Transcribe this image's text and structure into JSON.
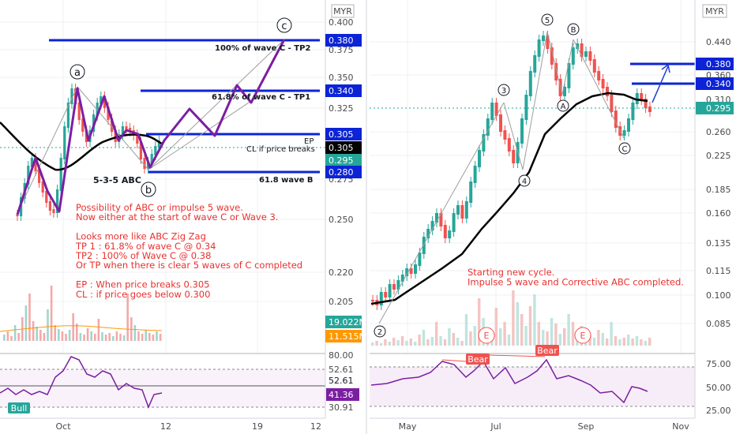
{
  "left_panel": {
    "currency": "MYR",
    "price_ticks": [
      "0.400",
      "0.375",
      "0.350",
      "0.325",
      "0.275",
      "0.250",
      "0.220",
      "0.205"
    ],
    "x_ticks": [
      "Oct",
      "12",
      "19",
      "12"
    ],
    "rsi_ticks": [
      "80.00",
      "52.61",
      "30.91"
    ],
    "rsi_tags": [
      {
        "text": "52.61",
        "color": "#ffffff",
        "fg": "#131722"
      },
      {
        "text": "41.36",
        "color": "#7b1fa2",
        "fg": "#ffffff"
      }
    ],
    "price_tags": [
      {
        "text": "0.380",
        "color": "#0c23d6",
        "fg": "#ffffff"
      },
      {
        "text": "0.340",
        "color": "#0c23d6",
        "fg": "#ffffff"
      },
      {
        "text": "0.305",
        "color": "#0c23d6",
        "fg": "#ffffff"
      },
      {
        "text": "0.305",
        "color": "#000000",
        "fg": "#ffffff"
      },
      {
        "text": "0.295",
        "color": "#26a69a",
        "fg": "#ffffff"
      },
      {
        "text": "0.280",
        "color": "#0c23d6",
        "fg": "#ffffff"
      },
      {
        "text": "19.022M",
        "color": "#26a69a",
        "fg": "#ffffff"
      },
      {
        "text": "11.515M",
        "color": "#ff9800",
        "fg": "#ffffff"
      }
    ],
    "level_labels": [
      "100% of wave C - TP2",
      "61.8% of wave C - TP1",
      "EP",
      "CL if price breaks",
      "61.8 wave B"
    ],
    "wave_labels": [
      "a",
      "b",
      "c"
    ],
    "pattern_label": "5-3-5 ABC",
    "bull_tag": "Bull",
    "notes": [
      "Possibility of ABC or impulse 5 wave.",
      "Now either at the start of wave C or Wave 3.",
      "",
      "Looks more like ABC Zig Zag",
      "TP 1 : 61.8% of wave C @ 0.34",
      "TP2 : 100% of Wave C @ 0.38",
      "Or TP when there is clear 5 waves of C completed",
      "",
      "EP : When price breaks 0.305",
      "CL : if price goes below 0.300"
    ]
  },
  "right_panel": {
    "currency": "MYR",
    "price_ticks": [
      "0.440",
      "0.360",
      "0.310",
      "0.260",
      "0.225",
      "0.185",
      "0.160",
      "0.135",
      "0.115",
      "0.100",
      "0.085"
    ],
    "x_ticks": [
      "May",
      "Jul",
      "Sep",
      "Nov"
    ],
    "rsi_ticks": [
      "75.00",
      "50.00",
      "25.00"
    ],
    "price_tags": [
      {
        "text": "0.380",
        "color": "#0c23d6",
        "fg": "#ffffff"
      },
      {
        "text": "0.340",
        "color": "#0c23d6",
        "fg": "#ffffff"
      },
      {
        "text": "0.295",
        "color": "#26a69a",
        "fg": "#ffffff"
      }
    ],
    "wave_labels": [
      "2",
      "3",
      "4",
      "5",
      "A",
      "B",
      "C"
    ],
    "earnings": [
      "E",
      "E"
    ],
    "bear_tags": [
      "Bear",
      "Bear"
    ],
    "notes": [
      "Starting new cycle.",
      "Impulse 5 wave and Corrective ABC completed."
    ]
  },
  "colors": {
    "up": "#26a69a",
    "down": "#ef5350",
    "level": "#0c23d6",
    "wave": "#7b1fa2",
    "rsi": "#7b1fa2",
    "ma": "#000000",
    "note": "#e8312f"
  }
}
